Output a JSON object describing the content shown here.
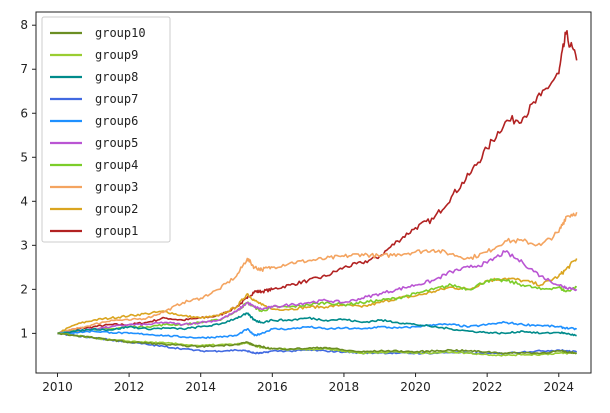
{
  "chart_data": {
    "type": "line",
    "title": "",
    "xlabel": "",
    "ylabel": "",
    "xlim": [
      2009.4,
      2024.9
    ],
    "ylim": [
      0.1,
      8.3
    ],
    "x_ticks": [
      "2010",
      "2012",
      "2014",
      "2016",
      "2018",
      "2020",
      "2022",
      "2024"
    ],
    "y_ticks": [
      "1",
      "2",
      "3",
      "4",
      "5",
      "6",
      "7",
      "8"
    ],
    "grid": false,
    "legend_position": "top-left",
    "x": [
      2010.0,
      2010.5,
      2011.0,
      2011.5,
      2012.0,
      2012.5,
      2013.0,
      2013.5,
      2014.0,
      2014.5,
      2015.0,
      2015.3,
      2015.5,
      2015.7,
      2016.0,
      2016.5,
      2017.0,
      2017.5,
      2018.0,
      2018.5,
      2019.0,
      2019.5,
      2020.0,
      2020.5,
      2021.0,
      2021.5,
      2022.0,
      2022.5,
      2023.0,
      2023.5,
      2024.0,
      2024.2,
      2024.5
    ],
    "series": [
      {
        "name": "group10",
        "color": "#6b8e23",
        "values": [
          1.0,
          0.95,
          0.9,
          0.85,
          0.8,
          0.78,
          0.75,
          0.72,
          0.7,
          0.72,
          0.75,
          0.8,
          0.72,
          0.7,
          0.65,
          0.65,
          0.66,
          0.68,
          0.62,
          0.58,
          0.6,
          0.6,
          0.58,
          0.6,
          0.62,
          0.6,
          0.58,
          0.55,
          0.56,
          0.55,
          0.6,
          0.58,
          0.55
        ]
      },
      {
        "name": "group9",
        "color": "#9acd32",
        "values": [
          1.0,
          0.95,
          0.9,
          0.85,
          0.82,
          0.8,
          0.78,
          0.75,
          0.72,
          0.74,
          0.75,
          0.78,
          0.72,
          0.68,
          0.65,
          0.64,
          0.64,
          0.65,
          0.6,
          0.55,
          0.57,
          0.58,
          0.55,
          0.56,
          0.58,
          0.55,
          0.52,
          0.5,
          0.52,
          0.52,
          0.55,
          0.55,
          0.55
        ]
      },
      {
        "name": "group8",
        "color": "#008b8b",
        "values": [
          1.0,
          1.05,
          1.1,
          1.08,
          1.15,
          1.1,
          1.12,
          1.1,
          1.15,
          1.2,
          1.35,
          1.45,
          1.3,
          1.25,
          1.3,
          1.3,
          1.35,
          1.3,
          1.32,
          1.25,
          1.3,
          1.25,
          1.2,
          1.15,
          1.1,
          1.05,
          1.02,
          1.0,
          1.05,
          1.0,
          1.02,
          1.0,
          0.95
        ]
      },
      {
        "name": "group7",
        "color": "#4169e1",
        "values": [
          1.0,
          0.95,
          0.9,
          0.85,
          0.8,
          0.75,
          0.7,
          0.65,
          0.6,
          0.6,
          0.62,
          0.6,
          0.55,
          0.55,
          0.6,
          0.6,
          0.62,
          0.6,
          0.58,
          0.55,
          0.56,
          0.55,
          0.55,
          0.55,
          0.57,
          0.55,
          0.54,
          0.55,
          0.58,
          0.6,
          0.62,
          0.6,
          0.58
        ]
      },
      {
        "name": "group6",
        "color": "#1e90ff",
        "values": [
          1.0,
          1.02,
          1.05,
          1.02,
          1.0,
          0.98,
          0.95,
          0.92,
          0.9,
          0.92,
          0.95,
          1.1,
          0.95,
          1.0,
          1.1,
          1.1,
          1.15,
          1.1,
          1.12,
          1.1,
          1.15,
          1.12,
          1.15,
          1.2,
          1.2,
          1.15,
          1.2,
          1.25,
          1.2,
          1.18,
          1.15,
          1.12,
          1.1
        ]
      },
      {
        "name": "group5",
        "color": "#ba55d3",
        "values": [
          1.0,
          1.05,
          1.1,
          1.15,
          1.2,
          1.2,
          1.25,
          1.2,
          1.25,
          1.3,
          1.5,
          1.7,
          1.6,
          1.55,
          1.6,
          1.65,
          1.7,
          1.75,
          1.7,
          1.8,
          1.9,
          2.0,
          2.1,
          2.2,
          2.4,
          2.5,
          2.6,
          2.85,
          2.6,
          2.3,
          2.1,
          2.05,
          2.0
        ]
      },
      {
        "name": "group4",
        "color": "#7ccd2a",
        "values": [
          1.0,
          1.05,
          1.1,
          1.1,
          1.15,
          1.15,
          1.2,
          1.2,
          1.25,
          1.3,
          1.5,
          1.7,
          1.6,
          1.5,
          1.6,
          1.6,
          1.65,
          1.7,
          1.65,
          1.7,
          1.75,
          1.8,
          1.9,
          2.0,
          2.1,
          2.0,
          2.2,
          2.2,
          2.1,
          2.0,
          2.05,
          1.95,
          2.05
        ]
      },
      {
        "name": "group3",
        "color": "#f4a460",
        "values": [
          1.0,
          1.1,
          1.2,
          1.3,
          1.3,
          1.35,
          1.5,
          1.7,
          1.8,
          2.0,
          2.3,
          2.7,
          2.5,
          2.45,
          2.5,
          2.6,
          2.65,
          2.7,
          2.75,
          2.8,
          2.75,
          2.8,
          2.85,
          2.9,
          2.8,
          2.7,
          2.85,
          3.1,
          3.1,
          3.0,
          3.3,
          3.65,
          3.75
        ]
      },
      {
        "name": "group2",
        "color": "#daa520",
        "values": [
          1.0,
          1.2,
          1.3,
          1.35,
          1.4,
          1.45,
          1.5,
          1.4,
          1.35,
          1.4,
          1.6,
          1.9,
          1.75,
          1.65,
          1.55,
          1.55,
          1.6,
          1.6,
          1.65,
          1.6,
          1.7,
          1.8,
          1.85,
          1.95,
          2.05,
          2.0,
          2.2,
          2.25,
          2.2,
          2.1,
          2.3,
          2.45,
          2.7
        ]
      },
      {
        "name": "group1",
        "color": "#b22222",
        "values": [
          1.0,
          1.1,
          1.15,
          1.2,
          1.2,
          1.25,
          1.35,
          1.3,
          1.35,
          1.4,
          1.6,
          1.8,
          1.95,
          1.95,
          2.0,
          2.1,
          2.2,
          2.3,
          2.5,
          2.6,
          2.75,
          3.1,
          3.4,
          3.6,
          4.1,
          4.6,
          5.2,
          5.8,
          5.9,
          6.4,
          6.9,
          7.8,
          7.2
        ]
      }
    ]
  }
}
